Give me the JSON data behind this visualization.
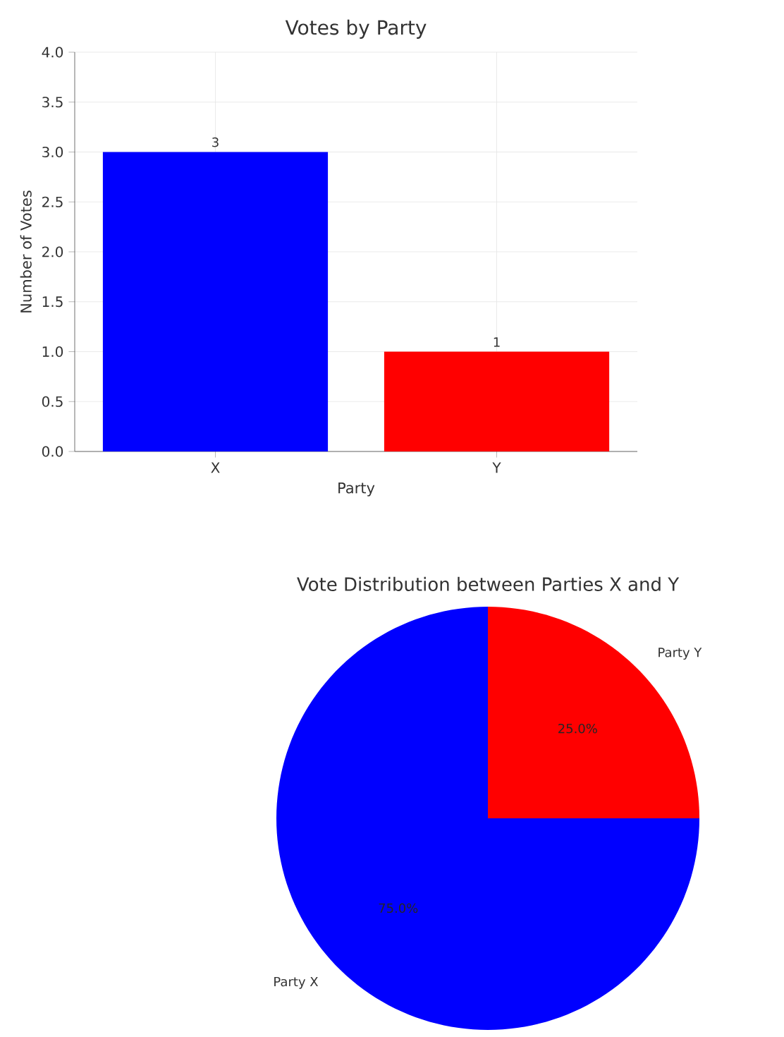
{
  "chart_data": [
    {
      "type": "bar",
      "title": "Votes by Party",
      "xlabel": "Party",
      "ylabel": "Number of Votes",
      "categories": [
        "X",
        "Y"
      ],
      "values": [
        3,
        1
      ],
      "colors": [
        "#0000ff",
        "#ff0000"
      ],
      "ylim": [
        0,
        4
      ],
      "yticks": [
        {
          "value": 0,
          "label": "0.0"
        },
        {
          "value": 0.5,
          "label": "0.5"
        },
        {
          "value": 1,
          "label": "1.0"
        },
        {
          "value": 1.5,
          "label": "1.5"
        },
        {
          "value": 2,
          "label": "2.0"
        },
        {
          "value": 2.5,
          "label": "2.5"
        },
        {
          "value": 3,
          "label": "3.0"
        },
        {
          "value": 3.5,
          "label": "3.5"
        },
        {
          "value": 4,
          "label": "4.0"
        }
      ],
      "grid": true,
      "data_labels": true
    },
    {
      "type": "pie",
      "title": "Vote Distribution between Parties X and Y",
      "categories": [
        "Party X",
        "Party Y"
      ],
      "values": [
        75,
        25
      ],
      "colors": [
        "#0000ff",
        "#ff0000"
      ],
      "value_labels": [
        "75.0%",
        "25.0%"
      ]
    }
  ]
}
